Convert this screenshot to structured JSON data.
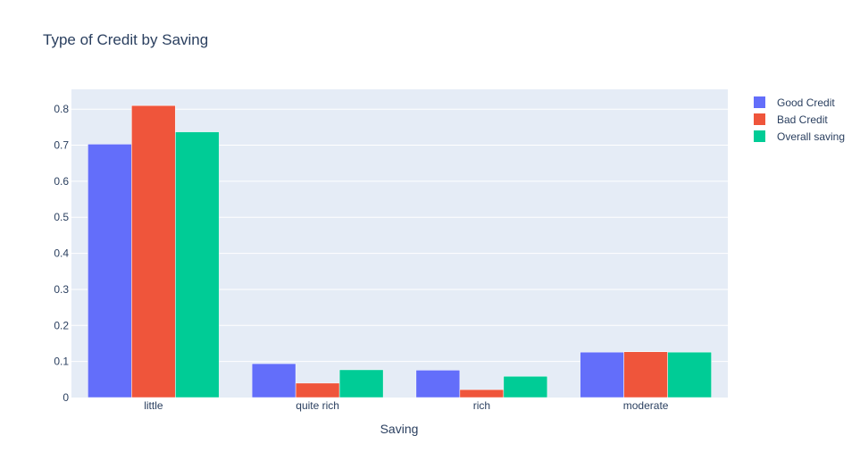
{
  "chart_data": {
    "type": "bar",
    "title": "Type of Credit by Saving",
    "xlabel": "Saving",
    "ylabel": "",
    "categories": [
      "little",
      "quite rich",
      "rich",
      "moderate"
    ],
    "series": [
      {
        "name": "Good Credit",
        "color": "#636efa",
        "values": [
          0.703,
          0.094,
          0.076,
          0.126
        ]
      },
      {
        "name": "Bad Credit",
        "color": "#ef553b",
        "values": [
          0.81,
          0.04,
          0.022,
          0.127
        ]
      },
      {
        "name": "Overall saving",
        "color": "#00cc96",
        "values": [
          0.737,
          0.077,
          0.059,
          0.126
        ]
      }
    ],
    "ylim": [
      0,
      0.855
    ],
    "yticks": [
      0,
      0.1,
      0.2,
      0.3,
      0.4,
      0.5,
      0.6,
      0.7,
      0.8
    ],
    "ytick_labels": [
      "0",
      "0.1",
      "0.2",
      "0.3",
      "0.4",
      "0.5",
      "0.6",
      "0.7",
      "0.8"
    ],
    "grid": true,
    "plot_background": "#e5ecf6",
    "legend_position": "top-right"
  }
}
